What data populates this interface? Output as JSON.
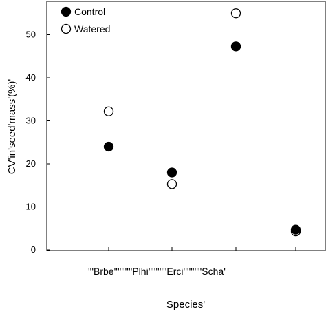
{
  "chart_data": {
    "type": "scatter",
    "xlabel": "Species'",
    "ylabel": "CV'in'seed'mass'(%)'",
    "categories": [
      "'''Brbe",
      "Plhi",
      "Erci",
      "Scha'"
    ],
    "category_filler": "''''''''''",
    "ylim": [
      0,
      55
    ],
    "yticks": [
      0,
      10,
      20,
      30,
      40,
      50
    ],
    "grid": false,
    "legend_position": "top-left",
    "series": [
      {
        "name": "Control",
        "marker": "filled-circle",
        "color": "#000000",
        "values": [
          24,
          18,
          47.3,
          4.7
        ]
      },
      {
        "name": "Watered",
        "marker": "open-circle",
        "color": "#ffffff",
        "values": [
          32.2,
          15.3,
          55,
          4.3
        ]
      }
    ]
  }
}
